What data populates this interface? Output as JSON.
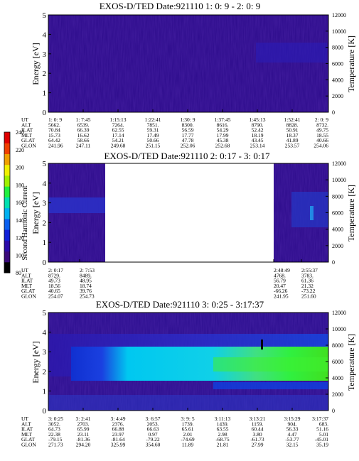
{
  "colors": {
    "bg": "#2b0a8a",
    "cbar": [
      "#000000",
      "#3a0a7a",
      "#2a0aa8",
      "#1020d8",
      "#0a60f0",
      "#00b0f0",
      "#00e0b0",
      "#20f040",
      "#a0f000",
      "#f0f000",
      "#f0a000",
      "#f04000",
      "#e00000"
    ]
  },
  "panels": [
    {
      "title": "EXOS-D/TED   Date:921110  1: 0: 9 - 2: 0: 9",
      "xlabel": "Energy [eV]",
      "ylabel_right": "Temperature [K]",
      "left_ticks": [
        "0",
        "1",
        "2",
        "3",
        "4",
        "5"
      ],
      "right_ticks": [
        "0",
        "2000",
        "4000",
        "6000",
        "8000",
        "10000",
        "12000"
      ],
      "row_labels": [
        "UT",
        "ALT",
        "ILAT",
        "MLT",
        "GLAT",
        "GLON"
      ],
      "columns": [
        [
          "1: 0: 9",
          "5662.",
          "70.84",
          "15.73",
          "64.42",
          "241.96"
        ],
        [
          "1: 7:45",
          "6539.",
          "66.39",
          "16.62",
          "58.66",
          "247.11"
        ],
        [
          "1:15:13",
          "7264.",
          "62.55",
          "17.14",
          "54.21",
          "249.68"
        ],
        [
          "1:22:41",
          "7851.",
          "59.31",
          "17.49",
          "50.66",
          "251.15"
        ],
        [
          "1:30: 9",
          "8300.",
          "56.59",
          "17.77",
          "47.78",
          "252.06"
        ],
        [
          "1:37:45",
          "8616.",
          "54.29",
          "17.99",
          "45.38",
          "252.68"
        ],
        [
          "1:45:13",
          "8790.",
          "52.42",
          "18.19",
          "43.45",
          "253.14"
        ],
        [
          "1:52:41",
          "8828.",
          "50.91",
          "18.37",
          "41.89",
          "253.57"
        ],
        [
          "2: 0: 9",
          "8732.",
          "49.75",
          "18.55",
          "40.66",
          "254.06"
        ]
      ]
    },
    {
      "title": "EXOS-D/TED   Date:921110  2: 0:17 - 3: 0:17",
      "xlabel": "Energy [eV]",
      "ylabel_right": "Temperature [K]",
      "left_ticks": [
        "0",
        "1",
        "2",
        "3",
        "4",
        "5"
      ],
      "right_ticks": [
        "0",
        "2000",
        "4000",
        "6000",
        "8000",
        "10000",
        "12000"
      ],
      "row_labels": [
        "UT",
        "ALT",
        "ILAT",
        "MLT",
        "GLAT",
        "GLON"
      ],
      "columns": [
        [
          "2: 0:17",
          "8729.",
          "49.73",
          "18.56",
          "40.65",
          "254.07"
        ],
        [
          "2: 7:53",
          "8489.",
          "48.95",
          "18.74",
          "39.76",
          "254.73"
        ],
        [
          "2:48:49",
          "4768.",
          "56.79",
          "20.47",
          "-66.26",
          "241.95"
        ],
        [
          "2:55:37",
          "3783.",
          "61.36",
          "21.32",
          "-73.22",
          "251.60"
        ]
      ]
    },
    {
      "title": "EXOS-D/TED   Date:921110  3: 0:25 - 3:17:37",
      "xlabel": "Energy [eV]",
      "ylabel_right": "Temperature [K]",
      "left_ticks": [
        "0",
        "1",
        "2",
        "3",
        "4",
        "5"
      ],
      "right_ticks": [
        "0",
        "2000",
        "4000",
        "6000",
        "8000",
        "10000",
        "12000"
      ],
      "row_labels": [
        "UT",
        "ALT",
        "ILAT",
        "MLT",
        "GLAT",
        "GLON"
      ],
      "columns": [
        [
          "3: 0:25",
          "3052.",
          "64.73",
          "22.38",
          "-79.15",
          "271.73"
        ],
        [
          "3: 2:41",
          "2703.",
          "65.99",
          "23.11",
          "-81.36",
          "294.20"
        ],
        [
          "3: 4:49",
          "2376.",
          "66.88",
          "23.97",
          "-81.64",
          "325.99"
        ],
        [
          "3: 6:57",
          "2053.",
          "66.63",
          "0.97",
          "-79.22",
          "354.60"
        ],
        [
          "3: 9: 5",
          "1739.",
          "65.61",
          "2.01",
          "-74.69",
          "11.89"
        ],
        [
          "3:11:13",
          "1439.",
          "63.55",
          "2.98",
          "-68.75",
          "21.81"
        ],
        [
          "3:13:21",
          "1159.",
          "60.44",
          "3.80",
          "-61.73",
          "27.99"
        ],
        [
          "3:15:29",
          "904.",
          "56.33",
          "4.47",
          "-53.77",
          "32.15"
        ],
        [
          "3:17:37",
          "683.",
          "51.16",
          "5.01",
          "-45.01",
          "35.19"
        ]
      ]
    }
  ],
  "colorbar": {
    "label": "Second Harmonic Current",
    "ticks": [
      "80",
      "100",
      "120",
      "140",
      "160",
      "180",
      "200",
      "220",
      "240"
    ]
  },
  "chart_data": [
    {
      "type": "heatmap",
      "title": "EXOS-D/TED   Date:921110  1: 0: 9 - 2: 0: 9",
      "ylabel": "Energy [eV]",
      "ylabel_right": "Temperature [K]",
      "ylim": [
        0,
        5
      ],
      "ylim_right": [
        0,
        12000
      ],
      "x_ticks": [
        "1: 0: 9",
        "1: 7:45",
        "1:15:13",
        "1:22:41",
        "1:30: 9",
        "1:37:45",
        "1:45:13",
        "1:52:41",
        "2: 0: 9"
      ],
      "colorbar_label": "Second Harmonic Current",
      "colorbar_range": [
        80,
        240
      ]
    },
    {
      "type": "heatmap",
      "title": "EXOS-D/TED   Date:921110  2: 0:17 - 3: 0:17",
      "ylabel": "Energy [eV]",
      "ylabel_right": "Temperature [K]",
      "ylim": [
        0,
        5
      ],
      "ylim_right": [
        0,
        12000
      ],
      "x_ticks": [
        "2: 0:17",
        "2: 7:53",
        "2:48:49",
        "2:55:37"
      ],
      "colorbar_label": "Second Harmonic Current",
      "colorbar_range": [
        80,
        240
      ]
    },
    {
      "type": "heatmap",
      "title": "EXOS-D/TED   Date:921110  3: 0:25 - 3:17:37",
      "ylabel": "Energy [eV]",
      "ylabel_right": "Temperature [K]",
      "ylim": [
        0,
        5
      ],
      "ylim_right": [
        0,
        12000
      ],
      "x_ticks": [
        "3: 0:25",
        "3: 2:41",
        "3: 4:49",
        "3: 6:57",
        "3: 9: 5",
        "3:11:13",
        "3:13:21",
        "3:15:29",
        "3:17:37"
      ],
      "colorbar_label": "Second Harmonic Current",
      "colorbar_range": [
        80,
        240
      ]
    }
  ]
}
